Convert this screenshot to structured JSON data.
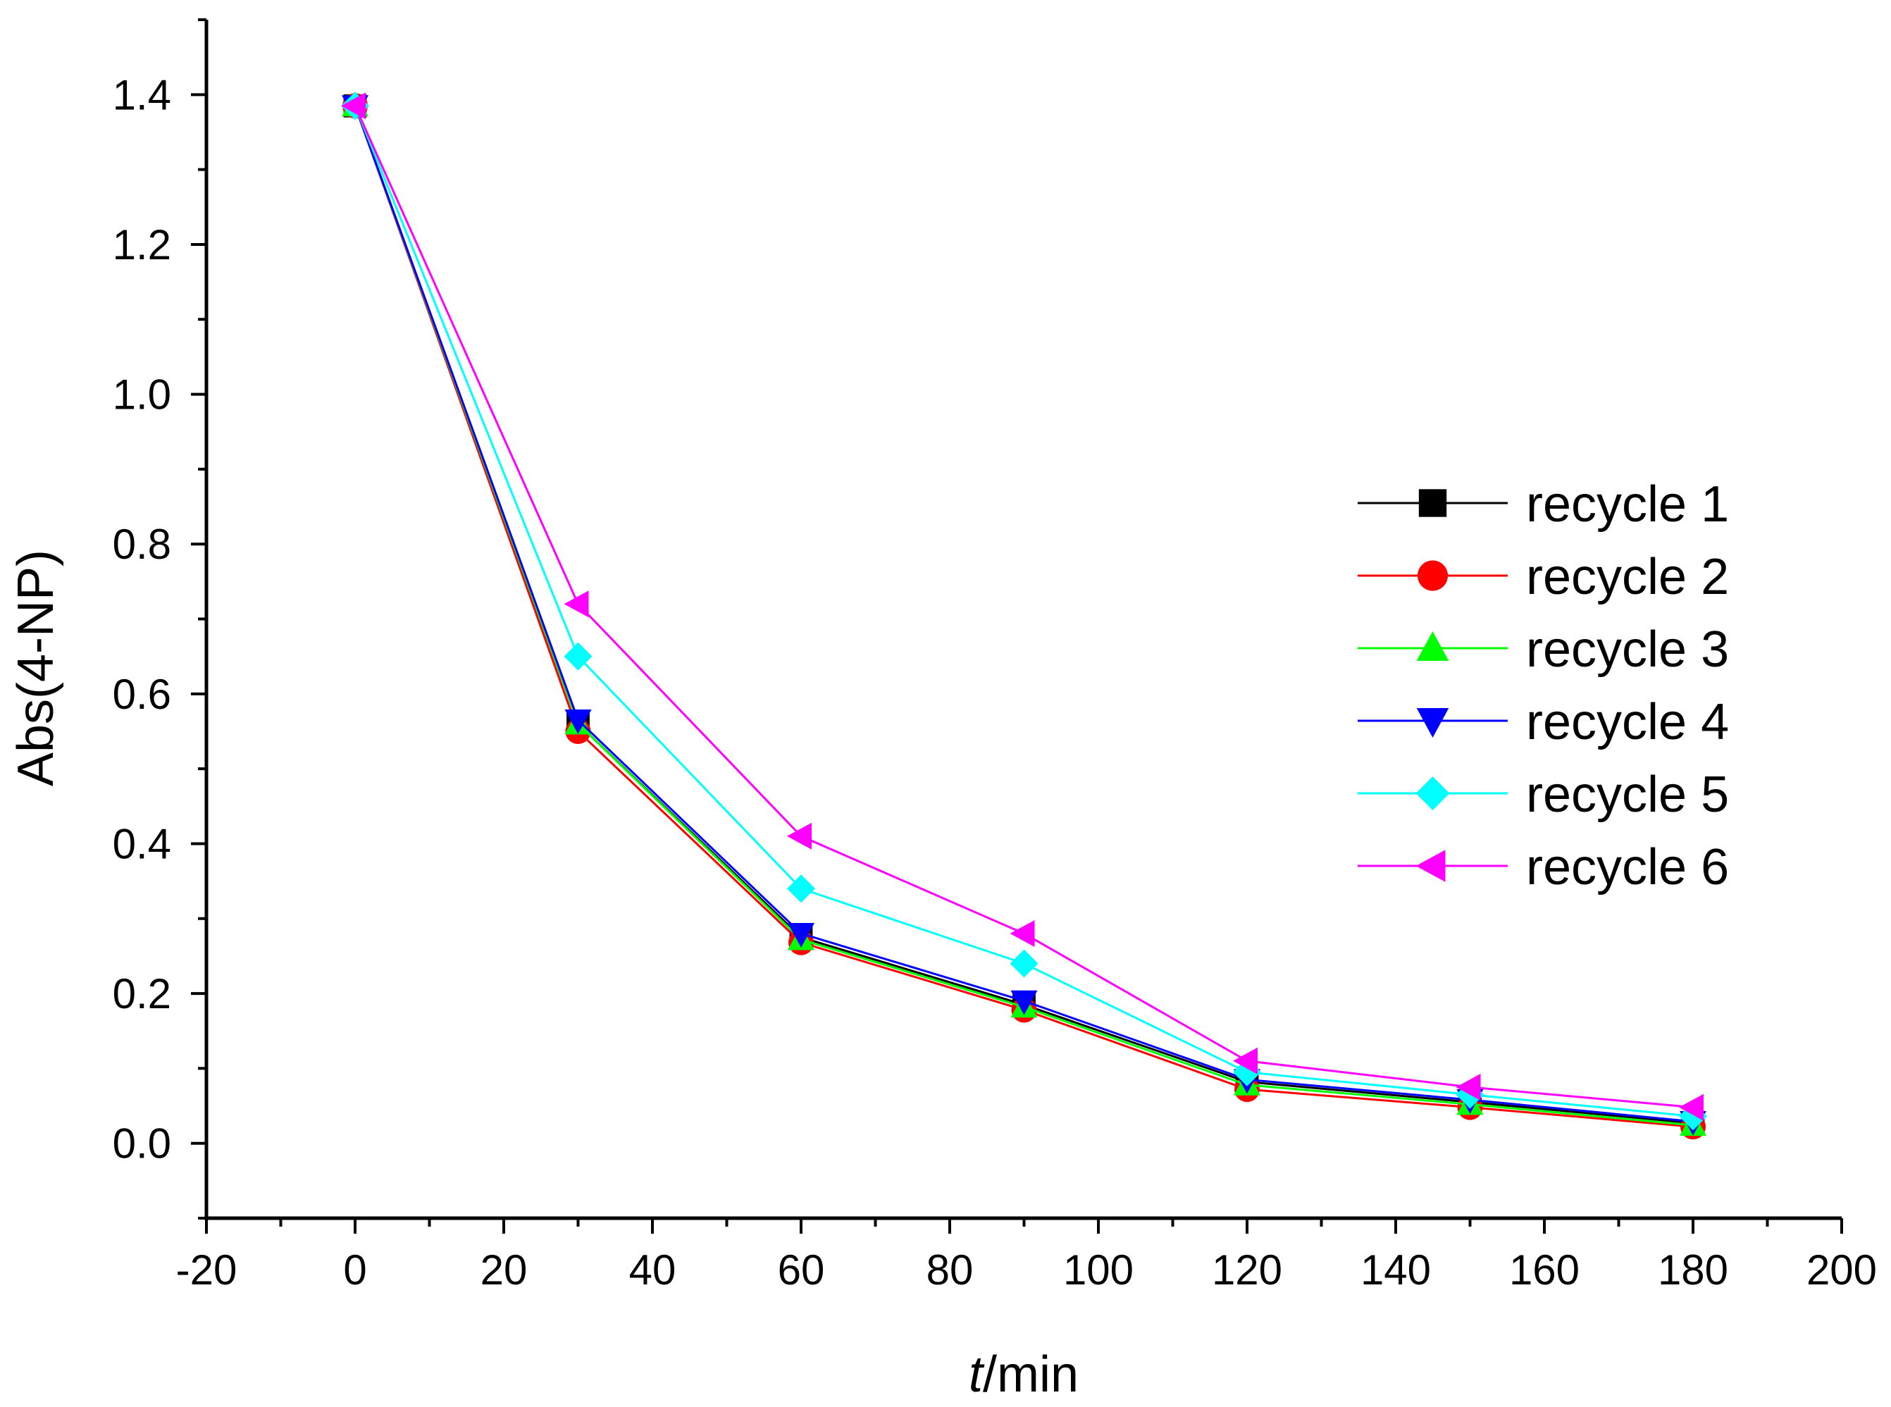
{
  "chart_data": {
    "type": "line",
    "title": "",
    "xlabel_italic": "t",
    "xlabel_rest": "/min",
    "ylabel": "Abs(4-NP)",
    "xlim": [
      -20,
      200
    ],
    "ylim": [
      -0.1,
      1.5
    ],
    "x_ticks": [
      -20,
      0,
      20,
      40,
      60,
      80,
      100,
      120,
      140,
      160,
      180,
      200
    ],
    "x_tick_labels": [
      "-20",
      "0",
      "20",
      "40",
      "60",
      "80",
      "100",
      "120",
      "140",
      "160",
      "180",
      "200"
    ],
    "y_ticks": [
      0.0,
      0.2,
      0.4,
      0.6,
      0.8,
      1.0,
      1.2,
      1.4
    ],
    "y_tick_labels": [
      "0.0",
      "0.2",
      "0.4",
      "0.6",
      "0.8",
      "1.0",
      "1.2",
      "1.4"
    ],
    "x": [
      0,
      30,
      60,
      90,
      120,
      150,
      180
    ],
    "series": [
      {
        "name": "recycle 1",
        "color": "#000000",
        "marker": "square",
        "values": [
          1.385,
          0.56,
          0.275,
          0.185,
          0.082,
          0.055,
          0.027
        ]
      },
      {
        "name": "recycle 2",
        "color": "#ff0000",
        "marker": "circle",
        "values": [
          1.385,
          0.55,
          0.268,
          0.178,
          0.072,
          0.048,
          0.022
        ]
      },
      {
        "name": "recycle 3",
        "color": "#00ff00",
        "marker": "triangle-up",
        "values": [
          1.385,
          0.56,
          0.272,
          0.182,
          0.078,
          0.052,
          0.024
        ]
      },
      {
        "name": "recycle 4",
        "color": "#0000ff",
        "marker": "triangle-down",
        "values": [
          1.385,
          0.565,
          0.28,
          0.19,
          0.085,
          0.058,
          0.029
        ]
      },
      {
        "name": "recycle 5",
        "color": "#00ffff",
        "marker": "diamond",
        "values": [
          1.385,
          0.65,
          0.34,
          0.24,
          0.095,
          0.065,
          0.036
        ]
      },
      {
        "name": "recycle 6",
        "color": "#ff00ff",
        "marker": "triangle-left",
        "values": [
          1.385,
          0.72,
          0.41,
          0.28,
          0.11,
          0.075,
          0.048
        ]
      }
    ],
    "legend_position": "right",
    "grid": false
  }
}
